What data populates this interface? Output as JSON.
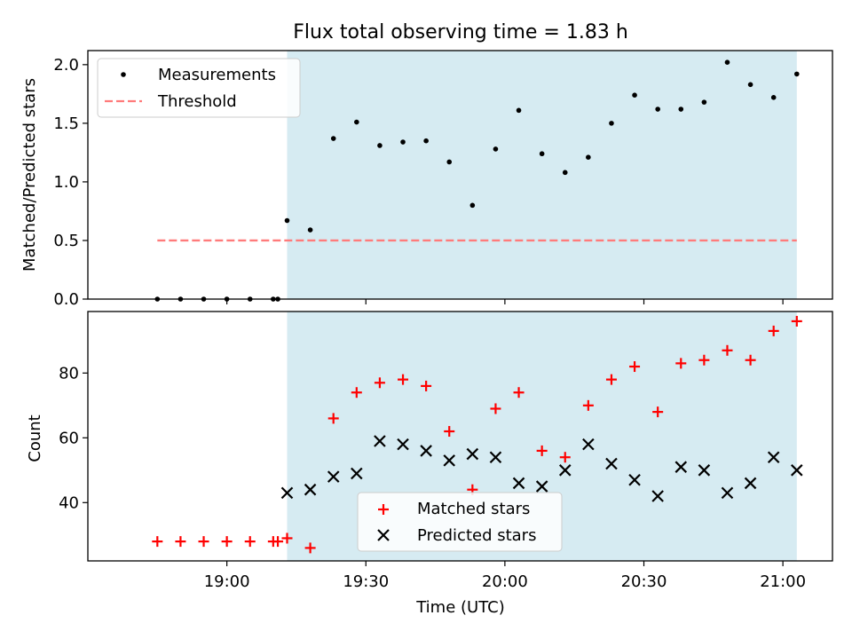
{
  "chart_data": [
    {
      "type": "scatter",
      "title": "Flux total observing time = 1.83 h",
      "xlabel": "",
      "ylabel": "Matched/Predicted stars",
      "ylim": [
        0,
        2.12
      ],
      "yticks": [
        "0.0",
        "0.5",
        "1.0",
        "1.5",
        "2.0"
      ],
      "ytick_values": [
        0,
        0.5,
        1.0,
        1.5,
        2.0
      ],
      "legend_position": "upper-left",
      "shaded_interval": [
        "19:13",
        "21:03"
      ],
      "shade_color": "#add8e6",
      "series": [
        {
          "name": "Measurements",
          "marker": "dot",
          "color": "#000000",
          "x": [
            "18:45",
            "18:50",
            "18:55",
            "19:00",
            "19:05",
            "19:10",
            "19:11",
            "19:13",
            "19:18",
            "19:23",
            "19:28",
            "19:33",
            "19:38",
            "19:43",
            "19:48",
            "19:53",
            "19:58",
            "20:03",
            "20:08",
            "20:13",
            "20:18",
            "20:23",
            "20:28",
            "20:33",
            "20:38",
            "20:43",
            "20:48",
            "20:53",
            "20:58",
            "21:03"
          ],
          "y": [
            0,
            0,
            0,
            0,
            0,
            0,
            0,
            0.67,
            0.59,
            1.37,
            1.51,
            1.31,
            1.34,
            1.35,
            1.17,
            0.8,
            1.28,
            1.61,
            1.24,
            1.08,
            1.21,
            1.5,
            1.74,
            1.62,
            1.62,
            1.68,
            2.02,
            1.83,
            1.72,
            1.92
          ]
        },
        {
          "name": "Threshold",
          "marker": "dashed-line",
          "color": "#ff7b7b",
          "x": [
            "18:45",
            "21:03"
          ],
          "y": [
            0.5,
            0.5
          ]
        }
      ]
    },
    {
      "type": "scatter",
      "title": "",
      "xlabel": "Time (UTC)",
      "ylabel": "Count",
      "ylim": [
        22,
        99
      ],
      "yticks": [
        "40",
        "60",
        "80"
      ],
      "ytick_values": [
        40,
        60,
        80
      ],
      "xticks": [
        "19:00",
        "19:30",
        "20:00",
        "20:30",
        "21:00"
      ],
      "legend_position": "lower-center",
      "shaded_interval": [
        "19:13",
        "21:03"
      ],
      "shade_color": "#add8e6",
      "series": [
        {
          "name": "Matched stars",
          "marker": "plus",
          "color": "#ff0000",
          "x": [
            "18:45",
            "18:50",
            "18:55",
            "19:00",
            "19:05",
            "19:10",
            "19:11",
            "19:13",
            "19:18",
            "19:23",
            "19:28",
            "19:33",
            "19:38",
            "19:43",
            "19:48",
            "19:53",
            "19:58",
            "20:03",
            "20:08",
            "20:13",
            "20:18",
            "20:23",
            "20:28",
            "20:33",
            "20:38",
            "20:43",
            "20:48",
            "20:53",
            "20:58",
            "21:03"
          ],
          "y": [
            28,
            28,
            28,
            28,
            28,
            28,
            28,
            29,
            26,
            66,
            74,
            77,
            78,
            76,
            62,
            44,
            69,
            74,
            56,
            54,
            70,
            78,
            82,
            68,
            83,
            84,
            87,
            84,
            93,
            96
          ]
        },
        {
          "name": "Predicted stars",
          "marker": "x",
          "color": "#000000",
          "x": [
            "19:13",
            "19:18",
            "19:23",
            "19:28",
            "19:33",
            "19:38",
            "19:43",
            "19:48",
            "19:53",
            "19:58",
            "20:03",
            "20:08",
            "20:13",
            "20:18",
            "20:23",
            "20:28",
            "20:33",
            "20:38",
            "20:43",
            "20:48",
            "20:53",
            "20:58",
            "21:03"
          ],
          "y": [
            43,
            44,
            48,
            49,
            59,
            58,
            56,
            53,
            55,
            54,
            46,
            45,
            50,
            58,
            52,
            47,
            42,
            51,
            50,
            43,
            46,
            54,
            50
          ]
        }
      ]
    }
  ]
}
